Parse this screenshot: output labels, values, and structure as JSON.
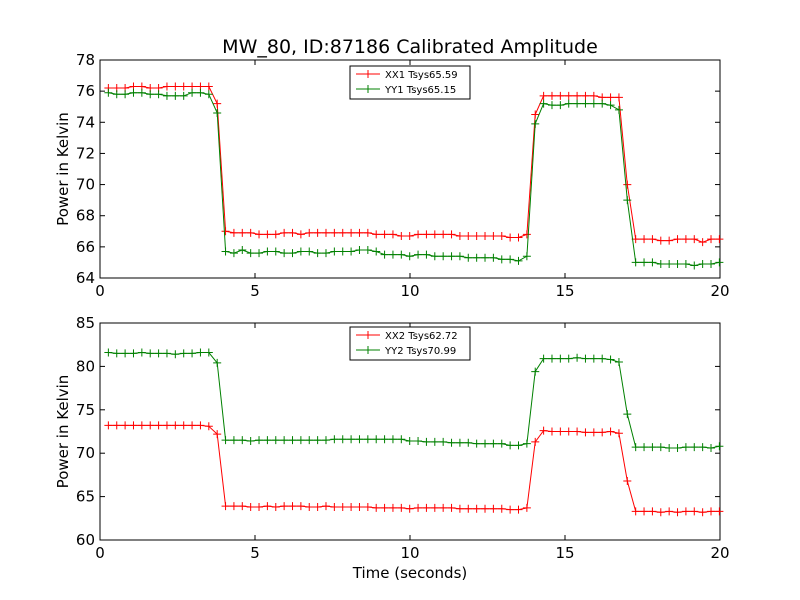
{
  "figure": {
    "title": "MW_80, ID:87186 Calibrated Amplitude"
  },
  "chart_data": [
    {
      "type": "line",
      "xlabel": "",
      "ylabel": "Power in Kelvin",
      "xlim": [
        0,
        20
      ],
      "ylim": [
        64,
        78
      ],
      "xticks": [
        0,
        5,
        10,
        15,
        20
      ],
      "xtick_labels": [
        "0",
        "5",
        "10",
        "15",
        "20"
      ],
      "yticks": [
        64,
        66,
        68,
        70,
        72,
        74,
        76,
        78
      ],
      "ytick_labels": [
        "64",
        "66",
        "68",
        "70",
        "72",
        "74",
        "76",
        "78"
      ],
      "grid": false,
      "legend_position": "top-center",
      "series": [
        {
          "name": "XX1 Tsys65.59",
          "color": "#ff0000",
          "marker": "+",
          "x": [
            0.27,
            0.54,
            0.81,
            1.08,
            1.35,
            1.62,
            1.89,
            2.16,
            2.43,
            2.7,
            2.97,
            3.24,
            3.51,
            3.78,
            4.05,
            4.32,
            4.59,
            4.86,
            5.13,
            5.4,
            5.67,
            5.94,
            6.21,
            6.48,
            6.75,
            7.02,
            7.29,
            7.56,
            7.83,
            8.1,
            8.37,
            8.64,
            8.91,
            9.18,
            9.45,
            9.72,
            9.99,
            10.26,
            10.53,
            10.8,
            11.07,
            11.34,
            11.61,
            11.88,
            12.15,
            12.42,
            12.69,
            12.96,
            13.23,
            13.5,
            13.77,
            14.04,
            14.31,
            14.58,
            14.85,
            15.12,
            15.39,
            15.66,
            15.93,
            16.2,
            16.47,
            16.74,
            17.01,
            17.28,
            17.55,
            17.82,
            18.09,
            18.36,
            18.63,
            18.9,
            19.17,
            19.44,
            19.71,
            19.98
          ],
          "values": [
            76.2,
            76.2,
            76.2,
            76.3,
            76.3,
            76.2,
            76.2,
            76.3,
            76.3,
            76.3,
            76.3,
            76.3,
            76.3,
            75.2,
            67.0,
            66.9,
            66.9,
            66.9,
            66.8,
            66.8,
            66.8,
            66.9,
            66.9,
            66.8,
            66.9,
            66.9,
            66.9,
            66.9,
            66.9,
            66.9,
            66.9,
            66.9,
            66.8,
            66.8,
            66.8,
            66.7,
            66.7,
            66.8,
            66.8,
            66.8,
            66.8,
            66.8,
            66.7,
            66.7,
            66.7,
            66.7,
            66.7,
            66.7,
            66.6,
            66.6,
            66.8,
            74.5,
            75.7,
            75.7,
            75.7,
            75.7,
            75.7,
            75.7,
            75.7,
            75.6,
            75.6,
            75.6,
            70.0,
            66.5,
            66.5,
            66.5,
            66.4,
            66.4,
            66.5,
            66.5,
            66.5,
            66.3,
            66.5,
            66.5
          ]
        },
        {
          "name": "YY1 Tsys65.15",
          "color": "#008000",
          "marker": "+",
          "x": [
            0.27,
            0.54,
            0.81,
            1.08,
            1.35,
            1.62,
            1.89,
            2.16,
            2.43,
            2.7,
            2.97,
            3.24,
            3.51,
            3.78,
            4.05,
            4.32,
            4.59,
            4.86,
            5.13,
            5.4,
            5.67,
            5.94,
            6.21,
            6.48,
            6.75,
            7.02,
            7.29,
            7.56,
            7.83,
            8.1,
            8.37,
            8.64,
            8.91,
            9.18,
            9.45,
            9.72,
            9.99,
            10.26,
            10.53,
            10.8,
            11.07,
            11.34,
            11.61,
            11.88,
            12.15,
            12.42,
            12.69,
            12.96,
            13.23,
            13.5,
            13.77,
            14.04,
            14.31,
            14.58,
            14.85,
            15.12,
            15.39,
            15.66,
            15.93,
            16.2,
            16.47,
            16.74,
            17.01,
            17.28,
            17.55,
            17.82,
            18.09,
            18.36,
            18.63,
            18.9,
            19.17,
            19.44,
            19.71,
            19.98
          ],
          "values": [
            75.9,
            75.8,
            75.8,
            75.9,
            75.9,
            75.8,
            75.8,
            75.7,
            75.7,
            75.7,
            75.9,
            75.9,
            75.8,
            74.6,
            65.7,
            65.6,
            65.8,
            65.6,
            65.6,
            65.7,
            65.7,
            65.6,
            65.6,
            65.7,
            65.7,
            65.6,
            65.6,
            65.7,
            65.7,
            65.7,
            65.8,
            65.8,
            65.7,
            65.5,
            65.5,
            65.5,
            65.4,
            65.5,
            65.5,
            65.4,
            65.4,
            65.4,
            65.4,
            65.3,
            65.3,
            65.3,
            65.3,
            65.2,
            65.2,
            65.1,
            65.4,
            73.9,
            75.2,
            75.1,
            75.1,
            75.2,
            75.2,
            75.2,
            75.2,
            75.2,
            75.1,
            74.8,
            69.0,
            65.0,
            65.0,
            65.0,
            64.9,
            64.9,
            64.9,
            64.9,
            64.8,
            64.9,
            64.9,
            65.0
          ]
        }
      ]
    },
    {
      "type": "line",
      "xlabel": "Time (seconds)",
      "ylabel": "Power in Kelvin",
      "xlim": [
        0,
        20
      ],
      "ylim": [
        60,
        85
      ],
      "xticks": [
        0,
        5,
        10,
        15,
        20
      ],
      "xtick_labels": [
        "0",
        "5",
        "10",
        "15",
        "20"
      ],
      "yticks": [
        60,
        65,
        70,
        75,
        80,
        85
      ],
      "ytick_labels": [
        "60",
        "65",
        "70",
        "75",
        "80",
        "85"
      ],
      "grid": false,
      "legend_position": "top-center",
      "series": [
        {
          "name": "XX2 Tsys62.72",
          "color": "#ff0000",
          "marker": "+",
          "x": [
            0.27,
            0.54,
            0.81,
            1.08,
            1.35,
            1.62,
            1.89,
            2.16,
            2.43,
            2.7,
            2.97,
            3.24,
            3.51,
            3.78,
            4.05,
            4.32,
            4.59,
            4.86,
            5.13,
            5.4,
            5.67,
            5.94,
            6.21,
            6.48,
            6.75,
            7.02,
            7.29,
            7.56,
            7.83,
            8.1,
            8.37,
            8.64,
            8.91,
            9.18,
            9.45,
            9.72,
            9.99,
            10.26,
            10.53,
            10.8,
            11.07,
            11.34,
            11.61,
            11.88,
            12.15,
            12.42,
            12.69,
            12.96,
            13.23,
            13.5,
            13.77,
            14.04,
            14.31,
            14.58,
            14.85,
            15.12,
            15.39,
            15.66,
            15.93,
            16.2,
            16.47,
            16.74,
            17.01,
            17.28,
            17.55,
            17.82,
            18.09,
            18.36,
            18.63,
            18.9,
            19.17,
            19.44,
            19.71,
            19.98
          ],
          "values": [
            73.2,
            73.2,
            73.2,
            73.2,
            73.2,
            73.2,
            73.2,
            73.2,
            73.2,
            73.2,
            73.2,
            73.2,
            73.1,
            72.2,
            63.9,
            63.9,
            63.9,
            63.8,
            63.8,
            63.9,
            63.8,
            63.9,
            63.9,
            63.9,
            63.8,
            63.8,
            63.9,
            63.8,
            63.8,
            63.8,
            63.8,
            63.8,
            63.7,
            63.7,
            63.7,
            63.7,
            63.6,
            63.7,
            63.7,
            63.7,
            63.7,
            63.7,
            63.6,
            63.6,
            63.6,
            63.6,
            63.6,
            63.6,
            63.5,
            63.5,
            63.7,
            71.3,
            72.6,
            72.5,
            72.5,
            72.5,
            72.5,
            72.4,
            72.4,
            72.4,
            72.5,
            72.3,
            66.8,
            63.3,
            63.3,
            63.3,
            63.2,
            63.3,
            63.2,
            63.3,
            63.3,
            63.2,
            63.3,
            63.3
          ]
        },
        {
          "name": "YY2 Tsys70.99",
          "color": "#008000",
          "marker": "+",
          "x": [
            0.27,
            0.54,
            0.81,
            1.08,
            1.35,
            1.62,
            1.89,
            2.16,
            2.43,
            2.7,
            2.97,
            3.24,
            3.51,
            3.78,
            4.05,
            4.32,
            4.59,
            4.86,
            5.13,
            5.4,
            5.67,
            5.94,
            6.21,
            6.48,
            6.75,
            7.02,
            7.29,
            7.56,
            7.83,
            8.1,
            8.37,
            8.64,
            8.91,
            9.18,
            9.45,
            9.72,
            9.99,
            10.26,
            10.53,
            10.8,
            11.07,
            11.34,
            11.61,
            11.88,
            12.15,
            12.42,
            12.69,
            12.96,
            13.23,
            13.5,
            13.77,
            14.04,
            14.31,
            14.58,
            14.85,
            15.12,
            15.39,
            15.66,
            15.93,
            16.2,
            16.47,
            16.74,
            17.01,
            17.28,
            17.55,
            17.82,
            18.09,
            18.36,
            18.63,
            18.9,
            19.17,
            19.44,
            19.71,
            19.98
          ],
          "values": [
            81.6,
            81.5,
            81.5,
            81.5,
            81.6,
            81.5,
            81.5,
            81.5,
            81.4,
            81.5,
            81.5,
            81.6,
            81.6,
            80.4,
            71.5,
            71.5,
            71.5,
            71.4,
            71.5,
            71.5,
            71.5,
            71.5,
            71.5,
            71.5,
            71.5,
            71.5,
            71.5,
            71.6,
            71.6,
            71.6,
            71.6,
            71.6,
            71.6,
            71.6,
            71.6,
            71.6,
            71.4,
            71.4,
            71.3,
            71.3,
            71.3,
            71.2,
            71.2,
            71.2,
            71.1,
            71.1,
            71.1,
            71.1,
            70.9,
            70.9,
            71.1,
            79.4,
            80.9,
            80.9,
            80.9,
            80.9,
            81.0,
            80.9,
            80.9,
            80.9,
            80.8,
            80.5,
            74.5,
            70.7,
            70.7,
            70.7,
            70.7,
            70.6,
            70.6,
            70.7,
            70.7,
            70.7,
            70.6,
            70.8
          ]
        }
      ]
    }
  ]
}
